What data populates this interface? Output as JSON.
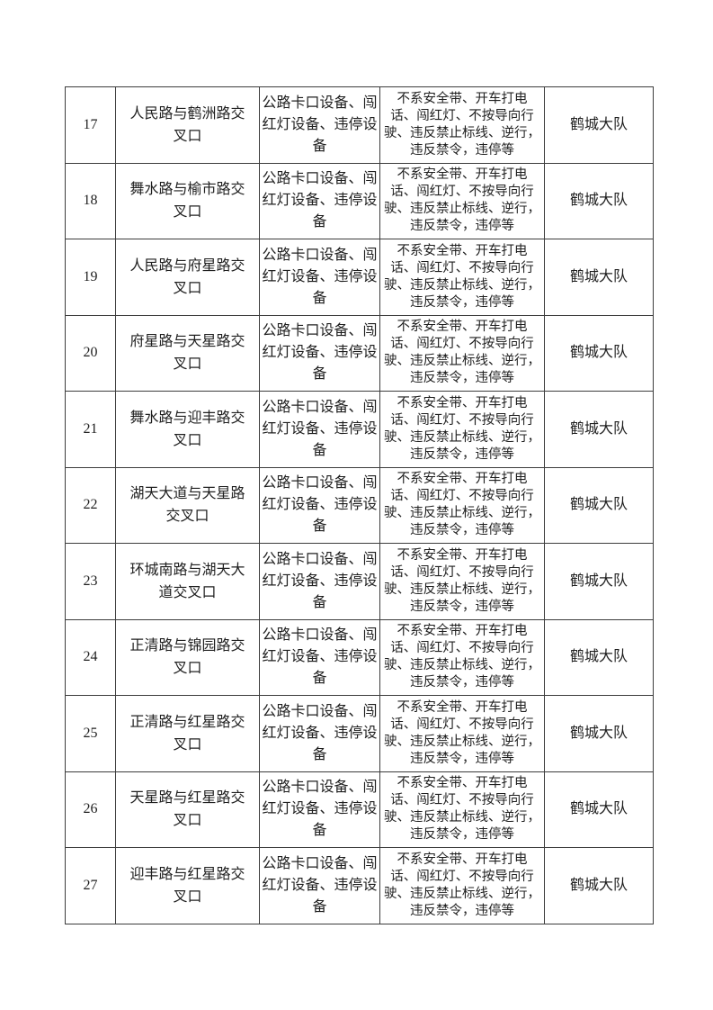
{
  "page": {
    "background_color": "#ffffff",
    "text_color": "#1f1f1f",
    "border_color": "#3c3c3c"
  },
  "table": {
    "description": "continuation page of traffic surveillance equipment table, rows 17-27, no header row visible",
    "rows": [
      {
        "no": "17",
        "location": "人民路与鹤洲路交\n叉口",
        "equipment": "公路卡口设备、闯\n红灯设备、违停设\n备",
        "violations": "不系安全带、开车打电\n话、闯红灯、不按导向行\n驶、违反禁止标线、逆行，\n违反禁令，违停等",
        "unit": "鹤城大队"
      },
      {
        "no": "18",
        "location": "舞水路与榆市路交\n叉口",
        "equipment": "公路卡口设备、闯\n红灯设备、违停设\n备",
        "violations": "不系安全带、开车打电\n话、闯红灯、不按导向行\n驶、违反禁止标线、逆行，\n违反禁令，违停等",
        "unit": "鹤城大队"
      },
      {
        "no": "19",
        "location": "人民路与府星路交\n叉口",
        "equipment": "公路卡口设备、闯\n红灯设备、违停设\n备",
        "violations": "不系安全带、开车打电\n话、闯红灯、不按导向行\n驶、违反禁止标线、逆行，\n违反禁令，违停等",
        "unit": "鹤城大队"
      },
      {
        "no": "20",
        "location": "府星路与天星路交\n叉口",
        "equipment": "公路卡口设备、闯\n红灯设备、违停设\n备",
        "violations": "不系安全带、开车打电\n话、闯红灯、不按导向行\n驶、违反禁止标线、逆行，\n违反禁令，违停等",
        "unit": "鹤城大队"
      },
      {
        "no": "21",
        "location": "舞水路与迎丰路交\n叉口",
        "equipment": "公路卡口设备、闯\n红灯设备、违停设\n备",
        "violations": "不系安全带、开车打电\n话、闯红灯、不按导向行\n驶、违反禁止标线、逆行，\n违反禁令，违停等",
        "unit": "鹤城大队"
      },
      {
        "no": "22",
        "location": "湖天大道与天星路\n交叉口",
        "equipment": "公路卡口设备、闯\n红灯设备、违停设\n备",
        "violations": "不系安全带、开车打电\n话、闯红灯、不按导向行\n驶、违反禁止标线、逆行，\n违反禁令，违停等",
        "unit": "鹤城大队"
      },
      {
        "no": "23",
        "location": "环城南路与湖天大\n道交叉口",
        "equipment": "公路卡口设备、闯\n红灯设备、违停设\n备",
        "violations": "不系安全带、开车打电\n话、闯红灯、不按导向行\n驶、违反禁止标线、逆行，\n违反禁令，违停等",
        "unit": "鹤城大队"
      },
      {
        "no": "24",
        "location": "正清路与锦园路交\n叉口",
        "equipment": "公路卡口设备、闯\n红灯设备、违停设\n备",
        "violations": "不系安全带、开车打电\n话、闯红灯、不按导向行\n驶、违反禁止标线、逆行，\n违反禁令，违停等",
        "unit": "鹤城大队"
      },
      {
        "no": "25",
        "location": "正清路与红星路交\n叉口",
        "equipment": "公路卡口设备、闯\n红灯设备、违停设\n备",
        "violations": "不系安全带、开车打电\n话、闯红灯、不按导向行\n驶、违反禁止标线、逆行，\n违反禁令，违停等",
        "unit": "鹤城大队"
      },
      {
        "no": "26",
        "location": "天星路与红星路交\n叉口",
        "equipment": "公路卡口设备、闯\n红灯设备、违停设\n备",
        "violations": "不系安全带、开车打电\n话、闯红灯、不按导向行\n驶、违反禁止标线、逆行，\n违反禁令，违停等",
        "unit": "鹤城大队"
      },
      {
        "no": "27",
        "location": "迎丰路与红星路交\n叉口",
        "equipment": "公路卡口设备、闯\n红灯设备、违停设\n备",
        "violations": "不系安全带、开车打电\n话、闯红灯、不按导向行\n驶、违反禁止标线、逆行，\n违反禁令，违停等",
        "unit": "鹤城大队"
      }
    ]
  }
}
